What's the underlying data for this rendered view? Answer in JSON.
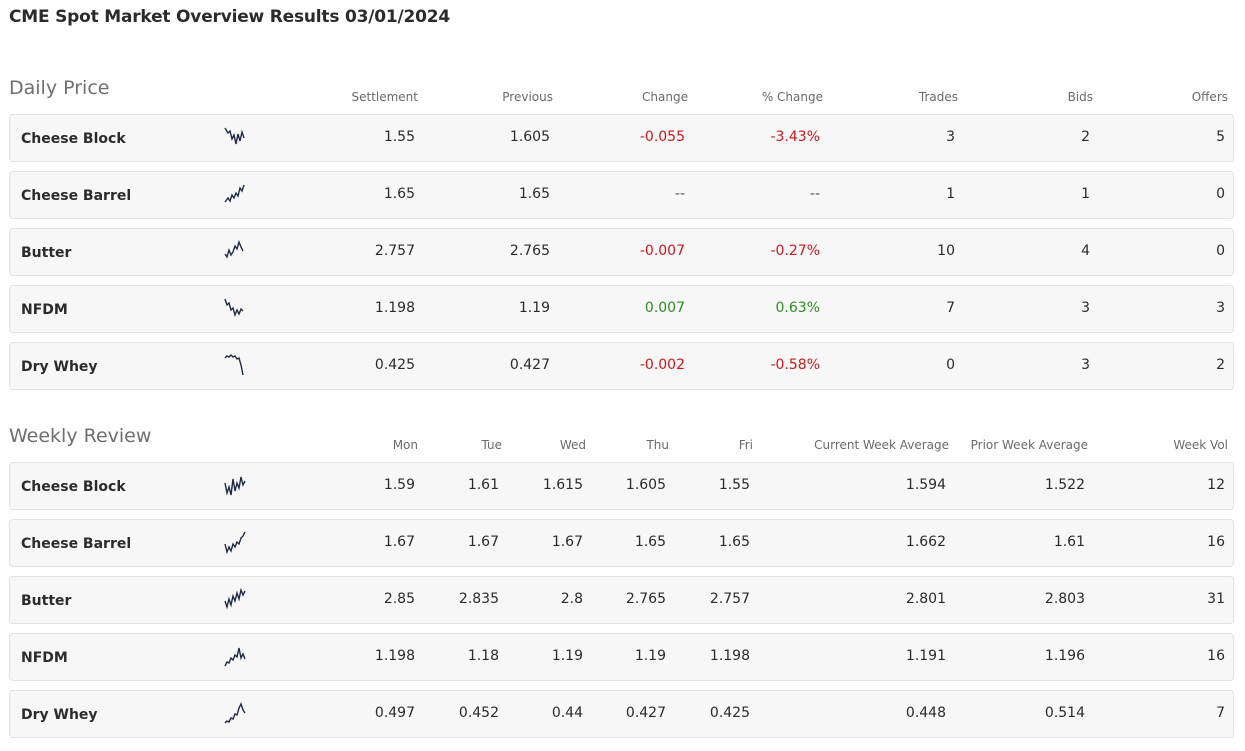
{
  "title": "CME Spot Market Overview Results 03/01/2024",
  "colors": {
    "negative": "#d0161b",
    "positive": "#2e8b1f",
    "sparkline": "#1f2a44"
  },
  "daily": {
    "title": "Daily Price",
    "headers": [
      "Settlement",
      "Previous",
      "Change",
      "% Change",
      "Trades",
      "Bids",
      "Offers"
    ],
    "rows": [
      {
        "name": "Cheese Block",
        "settlement": "1.55",
        "previous": "1.605",
        "change": "-0.055",
        "pct_change": "-3.43%",
        "trades": "3",
        "bids": "2",
        "offers": "5",
        "trend": "negative",
        "spark_icon": "sparkline-icon"
      },
      {
        "name": "Cheese Barrel",
        "settlement": "1.65",
        "previous": "1.65",
        "change": "--",
        "pct_change": "--",
        "trades": "1",
        "bids": "1",
        "offers": "0",
        "trend": "neutral",
        "spark_icon": "sparkline-icon"
      },
      {
        "name": "Butter",
        "settlement": "2.757",
        "previous": "2.765",
        "change": "-0.007",
        "pct_change": "-0.27%",
        "trades": "10",
        "bids": "4",
        "offers": "0",
        "trend": "negative",
        "spark_icon": "sparkline-icon"
      },
      {
        "name": "NFDM",
        "settlement": "1.198",
        "previous": "1.19",
        "change": "0.007",
        "pct_change": "0.63%",
        "trades": "7",
        "bids": "3",
        "offers": "3",
        "trend": "positive",
        "spark_icon": "sparkline-icon"
      },
      {
        "name": "Dry Whey",
        "settlement": "0.425",
        "previous": "0.427",
        "change": "-0.002",
        "pct_change": "-0.58%",
        "trades": "0",
        "bids": "3",
        "offers": "2",
        "trend": "negative",
        "spark_icon": "sparkline-icon"
      }
    ]
  },
  "weekly": {
    "title": "Weekly Review",
    "headers": [
      "Mon",
      "Tue",
      "Wed",
      "Thu",
      "Fri",
      "Current Week Average",
      "Prior Week Average",
      "Week Vol"
    ],
    "rows": [
      {
        "name": "Cheese Block",
        "mon": "1.59",
        "tue": "1.61",
        "wed": "1.615",
        "thu": "1.605",
        "fri": "1.55",
        "cur_avg": "1.594",
        "prior_avg": "1.522",
        "week_vol": "12",
        "spark_icon": "sparkline-icon"
      },
      {
        "name": "Cheese Barrel",
        "mon": "1.67",
        "tue": "1.67",
        "wed": "1.67",
        "thu": "1.65",
        "fri": "1.65",
        "cur_avg": "1.662",
        "prior_avg": "1.61",
        "week_vol": "16",
        "spark_icon": "sparkline-icon"
      },
      {
        "name": "Butter",
        "mon": "2.85",
        "tue": "2.835",
        "wed": "2.8",
        "thu": "2.765",
        "fri": "2.757",
        "cur_avg": "2.801",
        "prior_avg": "2.803",
        "week_vol": "31",
        "spark_icon": "sparkline-icon"
      },
      {
        "name": "NFDM",
        "mon": "1.198",
        "tue": "1.18",
        "wed": "1.19",
        "thu": "1.19",
        "fri": "1.198",
        "cur_avg": "1.191",
        "prior_avg": "1.196",
        "week_vol": "16",
        "spark_icon": "sparkline-icon"
      },
      {
        "name": "Dry Whey",
        "mon": "0.497",
        "tue": "0.452",
        "wed": "0.44",
        "thu": "0.427",
        "fri": "0.425",
        "cur_avg": "0.448",
        "prior_avg": "0.514",
        "week_vol": "7",
        "spark_icon": "sparkline-icon"
      }
    ]
  }
}
